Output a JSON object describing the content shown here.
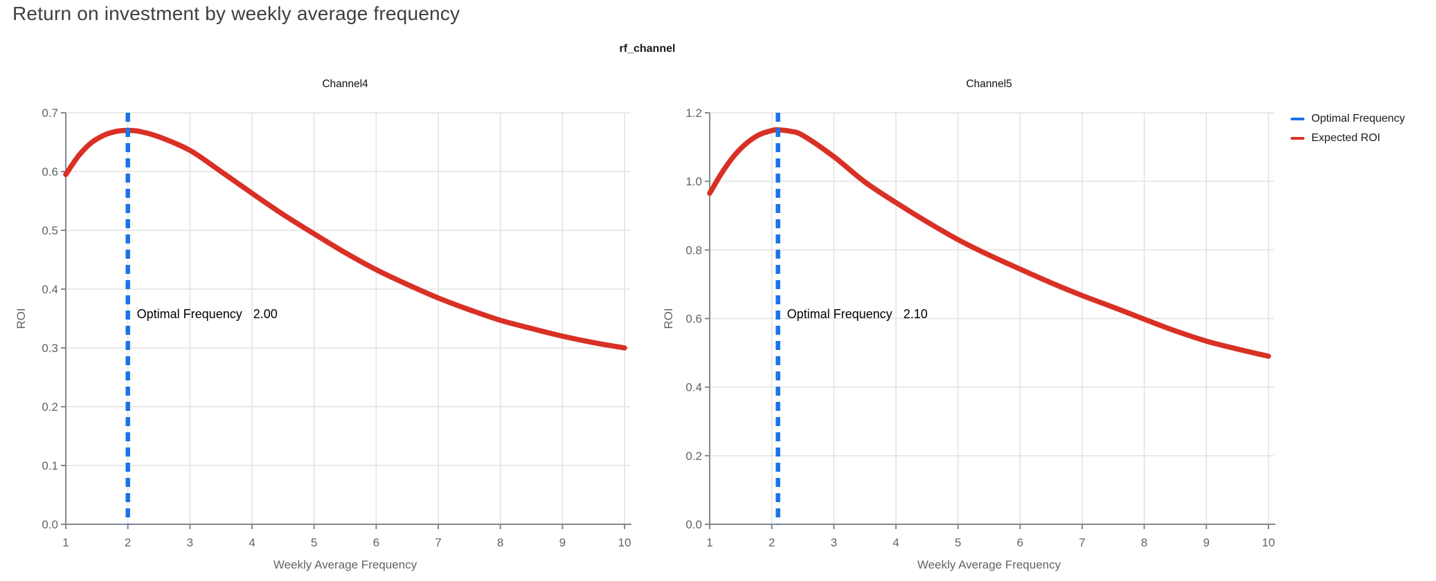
{
  "page_title": "Return on investment by weekly average frequency",
  "facet_header_title": "rf_channel",
  "legend": {
    "items": [
      {
        "label": "Optimal Frequency",
        "color": "#1A73E8"
      },
      {
        "label": "Expected ROI",
        "color": "#D93025"
      }
    ]
  },
  "chart_data": [
    {
      "type": "line",
      "title": "Channel4",
      "xlabel": "Weekly Average Frequency",
      "ylabel": "ROI",
      "xlim": [
        1,
        10
      ],
      "ylim": [
        0,
        0.7
      ],
      "x_ticks": [
        1,
        2,
        3,
        4,
        5,
        6,
        7,
        8,
        9,
        10
      ],
      "y_ticks": [
        0,
        0.1,
        0.2,
        0.3,
        0.4,
        0.5,
        0.6,
        0.7
      ],
      "grid": true,
      "rule": {
        "label": "Optimal Frequency",
        "x": 2.0,
        "value_label": "2.00",
        "color": "#1A73E8"
      },
      "series": [
        {
          "name": "Expected ROI",
          "color": "#D93025",
          "points": [
            [
              1,
              0.595
            ],
            [
              1.2,
              0.626
            ],
            [
              1.4,
              0.648
            ],
            [
              1.6,
              0.661
            ],
            [
              1.8,
              0.668
            ],
            [
              2,
              0.67
            ],
            [
              2.2,
              0.668
            ],
            [
              2.5,
              0.659
            ],
            [
              3,
              0.636
            ],
            [
              3.5,
              0.6
            ],
            [
              4,
              0.563
            ],
            [
              4.5,
              0.527
            ],
            [
              5,
              0.494
            ],
            [
              5.5,
              0.462
            ],
            [
              6,
              0.433
            ],
            [
              6.5,
              0.408
            ],
            [
              7,
              0.385
            ],
            [
              7.5,
              0.365
            ],
            [
              8,
              0.347
            ],
            [
              8.5,
              0.333
            ],
            [
              9,
              0.32
            ],
            [
              9.5,
              0.309
            ],
            [
              10,
              0.3
            ]
          ]
        }
      ]
    },
    {
      "type": "line",
      "title": "Channel5",
      "xlabel": "Weekly Average Frequency",
      "ylabel": "ROI",
      "xlim": [
        1,
        10
      ],
      "ylim": [
        0,
        1.2
      ],
      "x_ticks": [
        1,
        2,
        3,
        4,
        5,
        6,
        7,
        8,
        9,
        10
      ],
      "y_ticks": [
        0,
        0.2,
        0.4,
        0.6,
        0.8,
        1.0,
        1.2
      ],
      "grid": true,
      "rule": {
        "label": "Optimal Frequency",
        "x": 2.1,
        "value_label": "2.10",
        "color": "#1A73E8"
      },
      "series": [
        {
          "name": "Expected ROI",
          "color": "#D93025",
          "points": [
            [
              1,
              0.965
            ],
            [
              1.2,
              1.026
            ],
            [
              1.4,
              1.076
            ],
            [
              1.6,
              1.112
            ],
            [
              1.8,
              1.136
            ],
            [
              2,
              1.148
            ],
            [
              2.1,
              1.15
            ],
            [
              2.3,
              1.146
            ],
            [
              2.5,
              1.134
            ],
            [
              3,
              1.072
            ],
            [
              3.5,
              0.998
            ],
            [
              4,
              0.938
            ],
            [
              4.5,
              0.882
            ],
            [
              5,
              0.83
            ],
            [
              5.5,
              0.785
            ],
            [
              6,
              0.744
            ],
            [
              6.5,
              0.704
            ],
            [
              7,
              0.667
            ],
            [
              7.5,
              0.633
            ],
            [
              8,
              0.598
            ],
            [
              8.5,
              0.564
            ],
            [
              9,
              0.534
            ],
            [
              9.5,
              0.511
            ],
            [
              10,
              0.49
            ]
          ]
        }
      ]
    }
  ]
}
